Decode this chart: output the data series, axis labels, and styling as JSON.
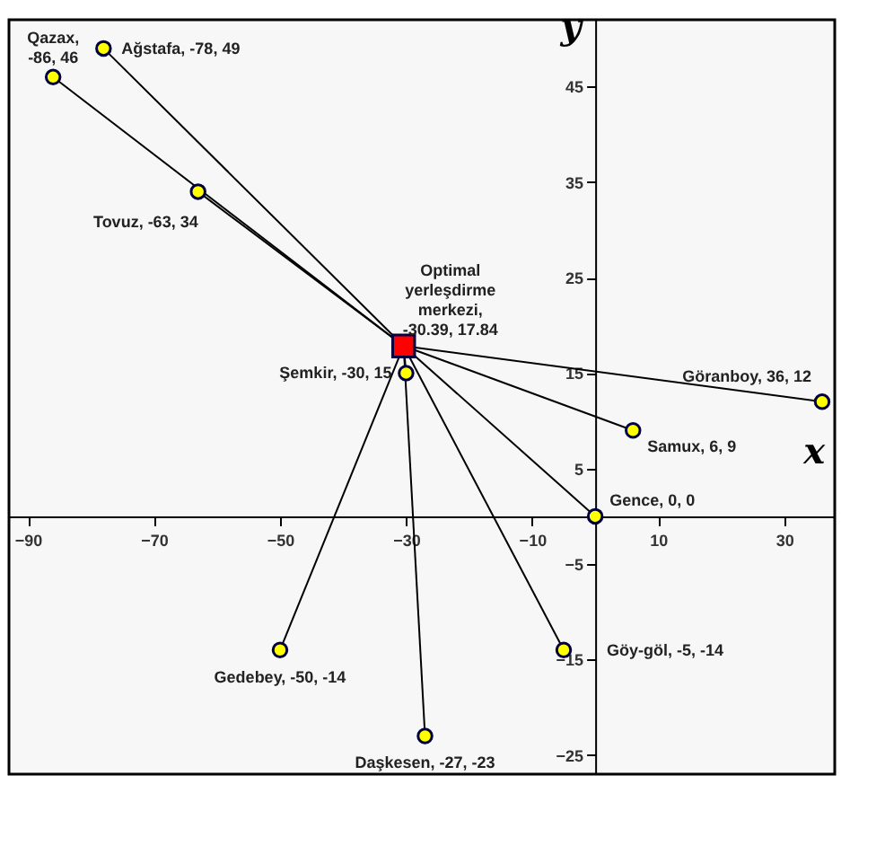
{
  "chart_data": {
    "type": "scatter",
    "xlabel": "x",
    "ylabel": "y",
    "xlim": [
      -93,
      38
    ],
    "ylim": [
      -27,
      52
    ],
    "xticks": [
      -90,
      -70,
      -50,
      -30,
      -10,
      10,
      30
    ],
    "yticks": [
      -25,
      -15,
      -5,
      5,
      15,
      25,
      35,
      45
    ],
    "grid": false,
    "series": [
      {
        "type": "line",
        "color": "#000000",
        "x": [
          -30.39,
          -86
        ],
        "values": [
          17.84,
          46
        ]
      },
      {
        "type": "line",
        "color": "#000000",
        "x": [
          -30.39,
          -78
        ],
        "values": [
          17.84,
          49
        ]
      },
      {
        "type": "line",
        "color": "#000000",
        "x": [
          -30.39,
          -63
        ],
        "values": [
          17.84,
          34
        ]
      },
      {
        "type": "line",
        "color": "#000000",
        "x": [
          -30.39,
          -30
        ],
        "values": [
          17.84,
          15
        ]
      },
      {
        "type": "line",
        "color": "#000000",
        "x": [
          -30.39,
          36
        ],
        "values": [
          17.84,
          12
        ]
      },
      {
        "type": "line",
        "color": "#000000",
        "x": [
          -30.39,
          6
        ],
        "values": [
          17.84,
          9
        ]
      },
      {
        "type": "line",
        "color": "#000000",
        "x": [
          -30.39,
          0
        ],
        "values": [
          17.84,
          0
        ]
      },
      {
        "type": "line",
        "color": "#000000",
        "x": [
          -30.39,
          -5
        ],
        "values": [
          17.84,
          -14
        ]
      },
      {
        "type": "line",
        "color": "#000000",
        "x": [
          -30.39,
          -50
        ],
        "values": [
          17.84,
          -14
        ]
      },
      {
        "type": "line",
        "color": "#000000",
        "x": [
          -30.39,
          -27
        ],
        "values": [
          17.84,
          -23
        ]
      },
      {
        "color": "#ffff00",
        "marker": "circle",
        "x": [
          -86,
          -78,
          -63,
          -30,
          36,
          6,
          0,
          -5,
          -50,
          -27
        ],
        "values": [
          46,
          49,
          34,
          15,
          12,
          9,
          0,
          -14,
          -14,
          -23
        ]
      },
      {
        "color": "#ff0000",
        "marker": "square",
        "x": [
          -30.39
        ],
        "values": [
          17.84
        ]
      }
    ],
    "annotations": [
      {
        "text": "Qazax,\n-86, 46",
        "x": -86,
        "y": 46
      },
      {
        "text": "Ağstafa, -78, 49",
        "x": -78,
        "y": 49
      },
      {
        "text": "Tovuz, -63, 34",
        "x": -63,
        "y": 34
      },
      {
        "text": "Şemkir, -30, 15",
        "x": -30,
        "y": 15
      },
      {
        "text": "Göranboy, 36, 12",
        "x": 36,
        "y": 12
      },
      {
        "text": "Samux, 6, 9",
        "x": 6,
        "y": 9
      },
      {
        "text": "Gence, 0, 0",
        "x": 0,
        "y": 0
      },
      {
        "text": "Göy-göl, -5, -14",
        "x": -5,
        "y": -14
      },
      {
        "text": "Gedebey, -50, -14",
        "x": -50,
        "y": -14
      },
      {
        "text": "Daşkesen, -27, -23",
        "x": -27,
        "y": -23
      },
      {
        "text": "Optimal\nyerleşdirme\nmerkezi,\n-30.39, 17.84",
        "x": -30.39,
        "y": 17.84
      }
    ]
  }
}
